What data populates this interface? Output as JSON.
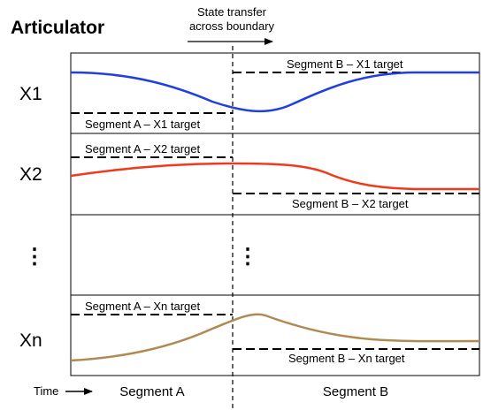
{
  "title": "Articulator",
  "boundary_note": {
    "line1": "State transfer",
    "line2": "across boundary"
  },
  "rows": [
    {
      "label": "X1",
      "target_a": "Segment A – X1 target",
      "target_b": "Segment B – X1 target",
      "curve_color": "#1f3fe0"
    },
    {
      "label": "X2",
      "target_a": "Segment A – X2 target",
      "target_b": "Segment B – X2 target",
      "curve_color": "#f03a1c"
    },
    {
      "label": "⋮",
      "ellipsis_in_plot": "⋮"
    },
    {
      "label": "Xn",
      "target_a": "Segment A – Xn target",
      "target_b": "Segment B – Xn target",
      "curve_color": "#b08a50"
    }
  ],
  "time_axis": {
    "label": "Time",
    "segment_a": "Segment A",
    "segment_b": "Segment B"
  },
  "colors": {
    "frame": "#000000",
    "target_line": "#000000"
  }
}
